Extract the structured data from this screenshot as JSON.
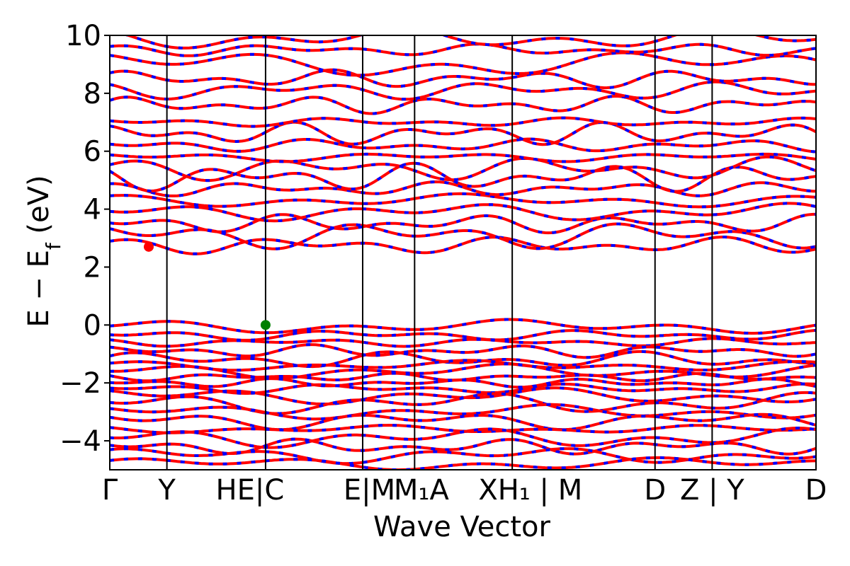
{
  "chart_data": {
    "type": "line",
    "title": "",
    "xlabel": "Wave Vector",
    "ylabel": "E − E",
    "ylabel_sub": "f",
    "ylabel_unit": "(eV)",
    "ylim": [
      -5,
      10
    ],
    "y_ticks": [
      10,
      8,
      6,
      4,
      2,
      0,
      -2,
      -4
    ],
    "y_tick_labels": [
      "10",
      "8",
      "6",
      "4",
      "2",
      "0",
      "−2",
      "−4"
    ],
    "xlim": [
      0,
      13.6
    ],
    "kpath_ticks": [
      {
        "label": "Γ",
        "x": 0.0
      },
      {
        "label": "Y",
        "x": 1.1
      },
      {
        "label": "HE|C",
        "x": 3.0
      },
      {
        "label": "E|M",
        "x": 4.87
      },
      {
        "label": "M1 A",
        "x": 5.87
      },
      {
        "label": "X H1 | M",
        "x": 7.75
      },
      {
        "label": "D",
        "x": 10.5
      },
      {
        "label": "Z | Y",
        "x": 11.6
      },
      {
        "label": "D",
        "x": 13.6
      }
    ],
    "x_tick_text": [
      "Γ",
      "Y",
      "HE|C",
      "E|M",
      "M₁A",
      "XH₁ | M",
      "D",
      "Z | Y",
      "D"
    ],
    "line_colors": {
      "spin_up": "#ff0000",
      "spin_down": "#0000ff"
    },
    "vbm_marker": {
      "x": 3.0,
      "y": 0.0,
      "color": "#008000"
    },
    "cbm_marker": {
      "x": 0.75,
      "y": 2.7,
      "color": "#ff0000"
    },
    "band_levels_valence": [
      -0.05,
      -0.35,
      -0.6,
      -0.9,
      -1.2,
      -1.4,
      -1.6,
      -1.8,
      -2.0,
      -2.2,
      -2.45,
      -2.7,
      -3.0,
      -3.3,
      -3.6,
      -3.9,
      -4.2,
      -4.5,
      -4.8
    ],
    "band_levels_conduction": [
      2.75,
      3.1,
      3.5,
      3.9,
      4.3,
      4.7,
      5.1,
      5.4,
      5.8,
      6.2,
      6.6,
      7.0,
      7.6,
      8.1,
      8.5,
      9.0,
      9.5,
      9.9
    ]
  }
}
